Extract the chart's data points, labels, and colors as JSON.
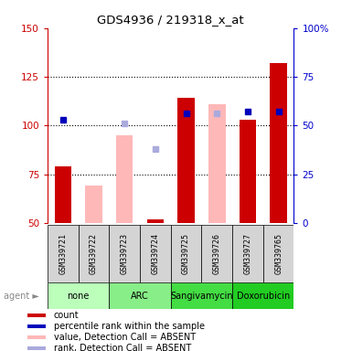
{
  "title": "GDS4936 / 219318_x_at",
  "samples": [
    "GSM339721",
    "GSM339722",
    "GSM339723",
    "GSM339724",
    "GSM339725",
    "GSM339726",
    "GSM339727",
    "GSM339765"
  ],
  "agents": [
    {
      "label": "none",
      "samples": [
        0,
        1
      ],
      "color": "#bbffbb"
    },
    {
      "label": "ARC",
      "samples": [
        2,
        3
      ],
      "color": "#88ee88"
    },
    {
      "label": "Sangivamycin",
      "samples": [
        4,
        5
      ],
      "color": "#44dd44"
    },
    {
      "label": "Doxorubicin",
      "samples": [
        6,
        7
      ],
      "color": "#22cc22"
    }
  ],
  "bars_red": [
    79,
    null,
    null,
    52,
    114,
    null,
    103,
    132
  ],
  "bars_pink": [
    null,
    69,
    95,
    null,
    null,
    111,
    null,
    null
  ],
  "dots_blue": [
    103,
    null,
    null,
    null,
    106,
    null,
    107,
    107
  ],
  "dots_lightblue": [
    null,
    null,
    101,
    88,
    null,
    106,
    null,
    null
  ],
  "ylim_left": [
    50,
    150
  ],
  "ylim_right": [
    0,
    100
  ],
  "yticks_left": [
    50,
    75,
    100,
    125,
    150
  ],
  "yticks_right": [
    0,
    25,
    50,
    75,
    100
  ],
  "yticklabels_right": [
    "0",
    "25",
    "50",
    "75",
    "100%"
  ],
  "dotted_lines": [
    75,
    100,
    125
  ],
  "bar_width": 0.55,
  "left_yaxis_color": "#cc0000",
  "right_yaxis_color": "#0000cc"
}
